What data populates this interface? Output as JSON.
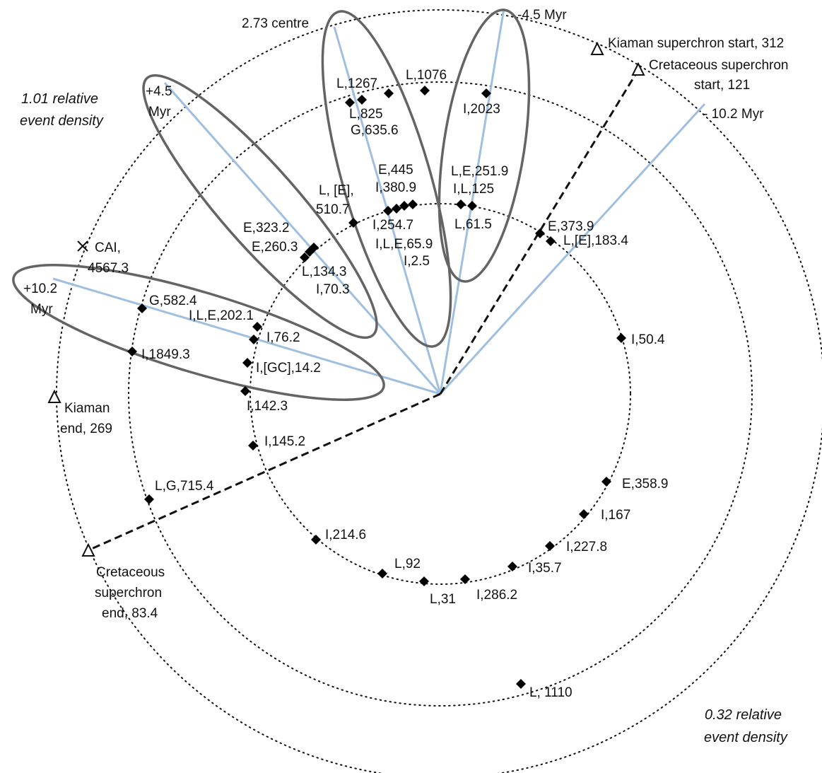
{
  "colors": {
    "ring": "#111111",
    "spoke": "#9fbfe0",
    "dashed": "#111111",
    "ellipse": "#646464",
    "marker": "#000000"
  },
  "rings": [
    {
      "name": "inner-ring"
    },
    {
      "name": "middle-ring"
    },
    {
      "name": "outer-ring"
    }
  ],
  "density_labels": {
    "high": [
      "1.01 relative",
      "event density"
    ],
    "low": [
      "0.32 relative",
      "event density"
    ]
  },
  "spoke_labels": {
    "centre": "2.73 centre",
    "minus_4_5": "-4.5 Myr",
    "minus_10_2": "- 10.2 Myr",
    "plus_4_5": [
      "+4.5",
      "Myr"
    ],
    "plus_10_2": [
      "+10.2",
      "Myr"
    ]
  },
  "boundary_markers": {
    "kiaman_start": [
      "Kiaman superchron start, 312"
    ],
    "cretaceous_start": [
      "Cretaceous superchron",
      "start, 121"
    ],
    "kiaman_end": [
      "Kiaman",
      "end, 269"
    ],
    "cretaceous_end": [
      "Cretaceous",
      "superchron",
      "end, 83.4"
    ],
    "cai": [
      "CAI,",
      "4567.3"
    ]
  },
  "events": [
    {
      "label": "L, 1110"
    },
    {
      "label": "L,G,715.4"
    },
    {
      "label": "G,582.4"
    },
    {
      "label": "I,1849.3"
    },
    {
      "label": "L,1267"
    },
    {
      "label": "L,825"
    },
    {
      "label": "G,635.6"
    },
    {
      "label": "L,1076"
    },
    {
      "label": "I,2023"
    },
    {
      "label": "I,L,E,202.1"
    },
    {
      "label": "I,76.2"
    },
    {
      "label": "I,[GC],14.2"
    },
    {
      "label": "I,142.3"
    },
    {
      "label": "I,145.2"
    },
    {
      "label": "I,214.6"
    },
    {
      "label": "L,92"
    },
    {
      "label": "L,31"
    },
    {
      "label": "I,286.2"
    },
    {
      "label": "I,35.7"
    },
    {
      "label": "I,227.8"
    },
    {
      "label": "I,167"
    },
    {
      "label": "E,358.9"
    },
    {
      "label": "I,50.4"
    },
    {
      "label": "E,373.9"
    },
    {
      "label": "L,[E],183.4"
    },
    {
      "label": "E,323.2"
    },
    {
      "label": "E,260.3"
    },
    {
      "label": "L,134.3"
    },
    {
      "label": "I,70.3"
    },
    {
      "label": "L, [E],"
    },
    {
      "label": "510.7"
    },
    {
      "label": "E,445"
    },
    {
      "label": "I,380.9"
    },
    {
      "label": "I,254.7"
    },
    {
      "label": "I,L,E,65.9"
    },
    {
      "label": "I,2.5"
    },
    {
      "label": "L,E,251.9"
    },
    {
      "label": "I,L,125"
    },
    {
      "label": "L,61.5"
    }
  ]
}
